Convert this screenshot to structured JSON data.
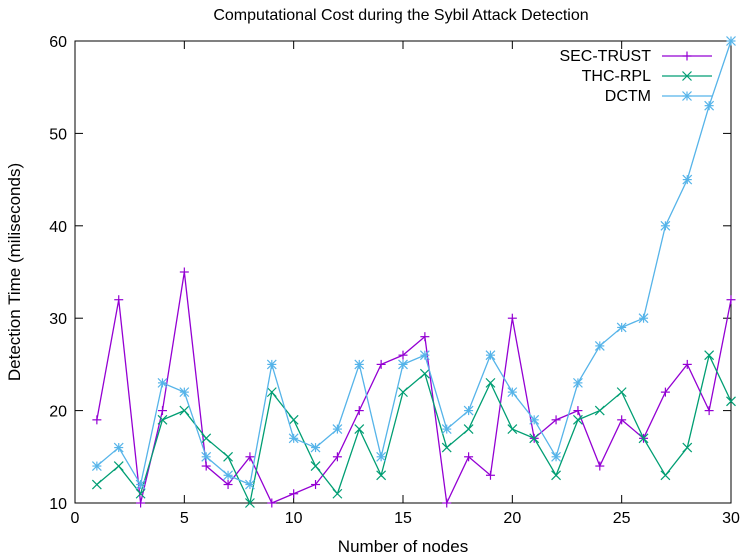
{
  "chart_data": {
    "type": "line",
    "title": "Computational Cost during the Sybil Attack Detection",
    "xlabel": "Number of nodes",
    "ylabel": "Detection Time (miliseconds)",
    "xlim": [
      0,
      30
    ],
    "ylim": [
      10,
      60
    ],
    "x_ticks": [
      0,
      5,
      10,
      15,
      20,
      25,
      30
    ],
    "y_ticks": [
      10,
      20,
      30,
      40,
      50,
      60
    ],
    "grid": false,
    "legend_position": "top-right",
    "x": [
      1,
      2,
      3,
      4,
      5,
      6,
      7,
      8,
      9,
      10,
      11,
      12,
      13,
      14,
      15,
      16,
      17,
      18,
      19,
      20,
      21,
      22,
      23,
      24,
      25,
      26,
      27,
      28,
      29,
      30
    ],
    "series": [
      {
        "name": "SEC-TRUST",
        "color": "#9400d3",
        "marker": "plus",
        "values": [
          19,
          32,
          10,
          20,
          35,
          14,
          12,
          15,
          10,
          11,
          12,
          15,
          20,
          25,
          26,
          28,
          10,
          15,
          13,
          30,
          17,
          19,
          20,
          14,
          19,
          17,
          22,
          25,
          20,
          32
        ]
      },
      {
        "name": "THC-RPL",
        "color": "#009e73",
        "marker": "cross",
        "values": [
          12,
          14,
          11,
          19,
          20,
          17,
          15,
          10,
          22,
          19,
          14,
          11,
          18,
          13,
          22,
          24,
          16,
          18,
          23,
          18,
          17,
          13,
          19,
          20,
          22,
          17,
          13,
          16,
          26,
          21
        ]
      },
      {
        "name": "DCTM",
        "color": "#56b4e9",
        "marker": "star",
        "values": [
          14,
          16,
          12,
          23,
          22,
          15,
          13,
          12,
          25,
          17,
          16,
          18,
          25,
          15,
          25,
          26,
          18,
          20,
          26,
          22,
          19,
          15,
          23,
          27,
          29,
          30,
          40,
          45,
          53,
          60
        ]
      }
    ]
  }
}
